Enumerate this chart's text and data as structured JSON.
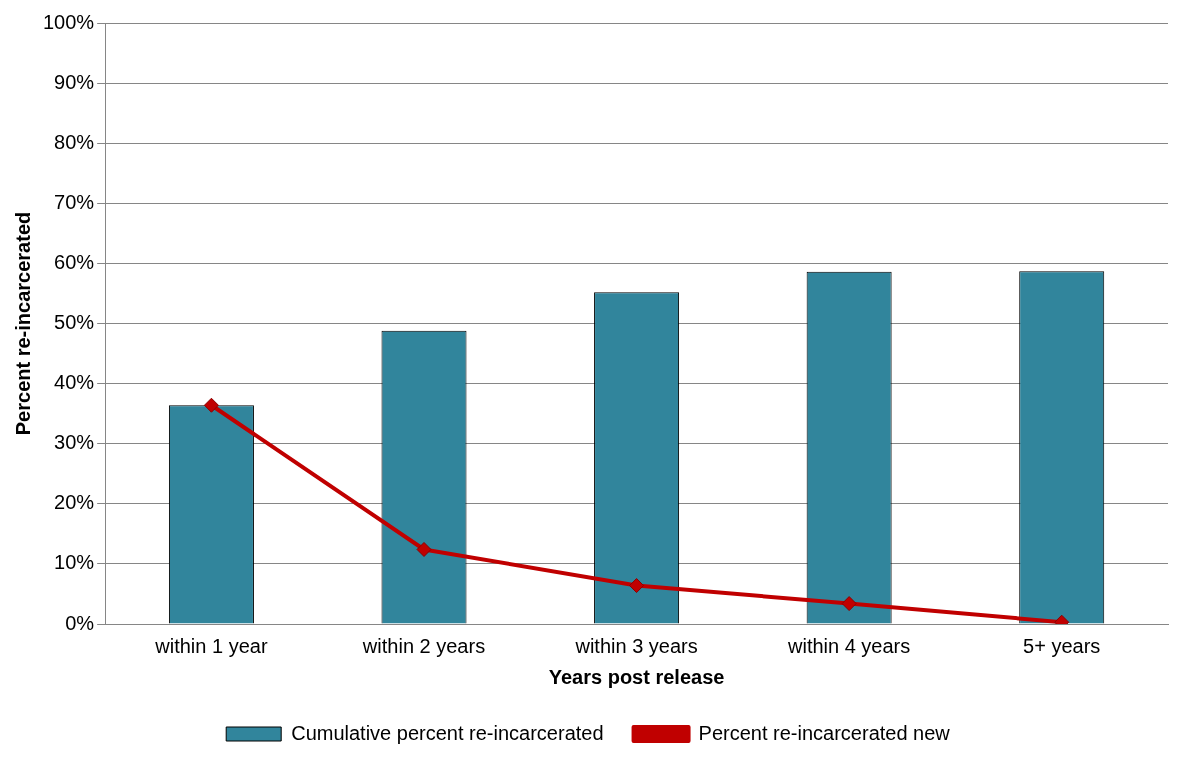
{
  "chart_data": {
    "type": "bar",
    "xlabel": "Years post release",
    "ylabel": "Percent re-incarcerated",
    "categories": [
      "within 1 year",
      "within 2 years",
      "within 3 years",
      "within 4 years",
      "5+ years"
    ],
    "series": [
      {
        "name": "Cumulative percent re-incarcerated",
        "color": "#31859c",
        "values": [
          36.4,
          48.8,
          55.2,
          58.6,
          58.7
        ]
      },
      {
        "name": "Percent re-incarcerated new",
        "type": "line",
        "color": "#c00000",
        "marker": "diamond",
        "values": [
          36.4,
          12.4,
          6.4,
          3.4,
          0.3
        ]
      }
    ],
    "ylim": [
      0,
      100
    ],
    "yticks": [
      {
        "value": 0,
        "label": "0%"
      },
      {
        "value": 10,
        "label": "10%"
      },
      {
        "value": 20,
        "label": "20%"
      },
      {
        "value": 30,
        "label": "30%"
      },
      {
        "value": 40,
        "label": "40%"
      },
      {
        "value": 50,
        "label": "50%"
      },
      {
        "value": 60,
        "label": "60%"
      },
      {
        "value": 70,
        "label": "70%"
      },
      {
        "value": 80,
        "label": "80%"
      },
      {
        "value": 90,
        "label": "90%"
      },
      {
        "value": 100,
        "label": "100%"
      }
    ],
    "grid": "y",
    "legend": "bottom"
  }
}
